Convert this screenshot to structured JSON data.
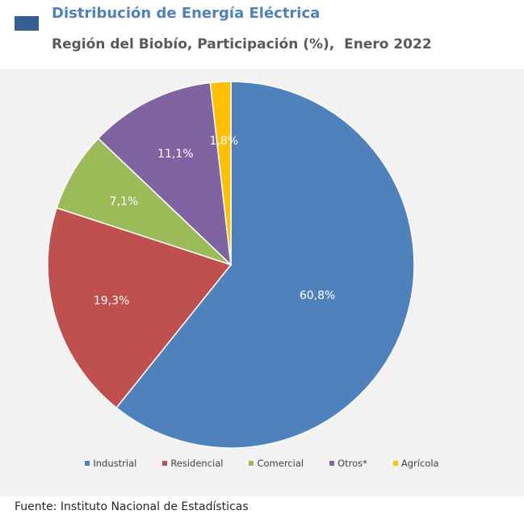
{
  "header": {
    "title": "Distribución de Energía Eléctrica",
    "subtitle": "Región del Biobío, Participación (%),  Enero 2022"
  },
  "footer": {
    "source": "Fuente: Instituto Nacional de Estadísticas"
  },
  "chart_data": {
    "type": "pie",
    "title": "Distribución de Energía Eléctrica",
    "subtitle": "Región del Biobío, Participación (%),  Enero 2022",
    "categories": [
      "Industrial",
      "Residencial",
      "Comercial",
      "Otros*",
      "Agrícola"
    ],
    "values": [
      60.8,
      19.3,
      7.1,
      11.1,
      1.8
    ],
    "data_labels": [
      "60,8%",
      "19,3%",
      "7,1%",
      "11,1%",
      "1,8%"
    ],
    "colors": [
      "#4f81bd",
      "#c0504d",
      "#9bbb59",
      "#8064a2",
      "#ffc000"
    ],
    "legend_position": "bottom"
  }
}
